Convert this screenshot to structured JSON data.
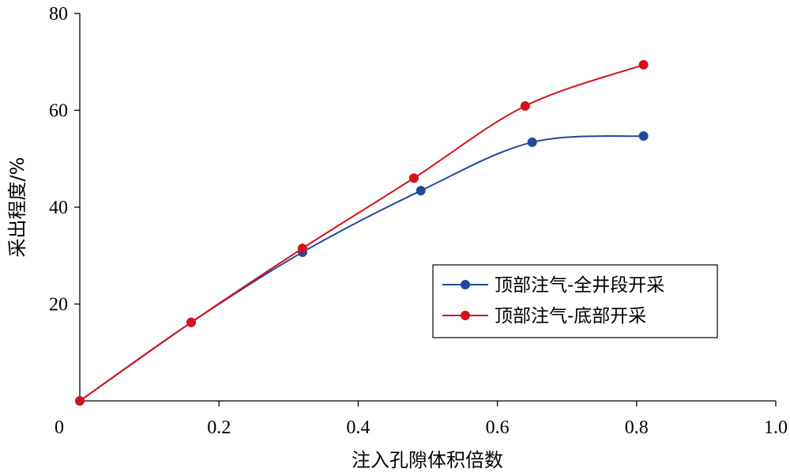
{
  "chart_data": {
    "type": "line",
    "xlabel": "注入孔隙体积倍数",
    "ylabel": "采出程度/%",
    "xlim": [
      0,
      1.0
    ],
    "ylim": [
      0,
      80
    ],
    "xticks": [
      "0",
      "0.2",
      "0.4",
      "0.6",
      "0.8",
      "1.0"
    ],
    "yticks": [
      "20",
      "40",
      "60",
      "80"
    ],
    "grid": false,
    "legend_position": "right",
    "series": [
      {
        "name": "顶部注气-全井段开采",
        "color": "#22499b",
        "x": [
          0,
          0.16,
          0.32,
          0.49,
          0.65,
          0.81
        ],
        "y": [
          0,
          16.2,
          30.7,
          43.4,
          53.4,
          54.7
        ]
      },
      {
        "name": "顶部注气-底部开采",
        "color": "#d4121c",
        "x": [
          0,
          0.16,
          0.32,
          0.48,
          0.64,
          0.81
        ],
        "y": [
          0,
          16.2,
          31.5,
          46.0,
          60.9,
          69.4
        ]
      }
    ]
  }
}
